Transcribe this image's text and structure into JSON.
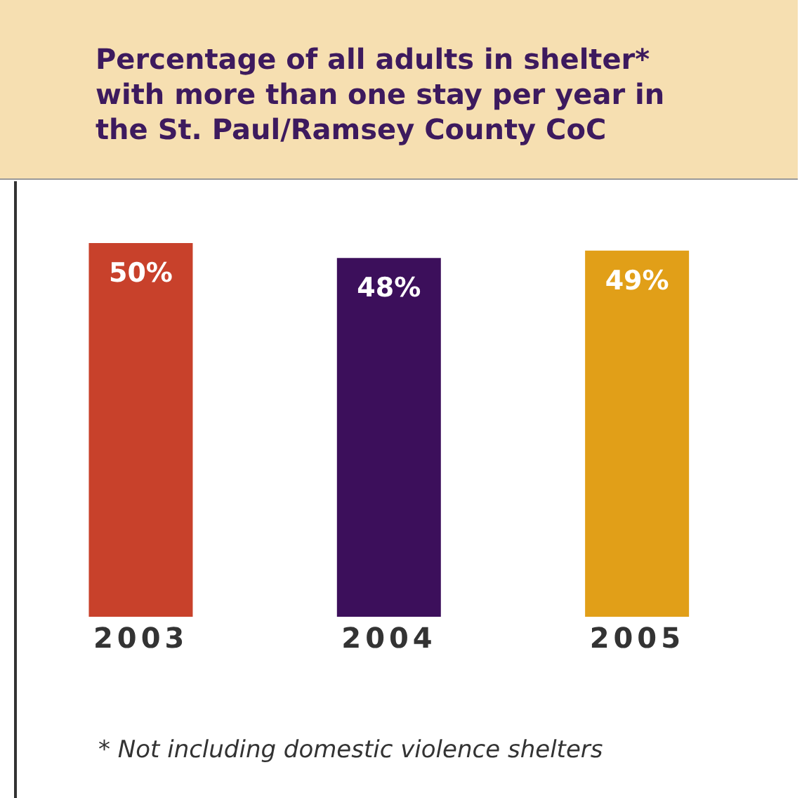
{
  "chart_data": {
    "type": "bar",
    "title": "Percentage of all adults in shelter*\nwith more than one stay per year in\nthe St. Paul/Ramsey County CoC",
    "categories": [
      "2003",
      "2004",
      "2005"
    ],
    "values": [
      50,
      48,
      49
    ],
    "value_labels": [
      "50%",
      "48%",
      "49%"
    ],
    "colors": [
      "#c8412b",
      "#3c0f5b",
      "#e19f18"
    ],
    "annotations": [
      "* Not including domestic violence shelters"
    ]
  }
}
